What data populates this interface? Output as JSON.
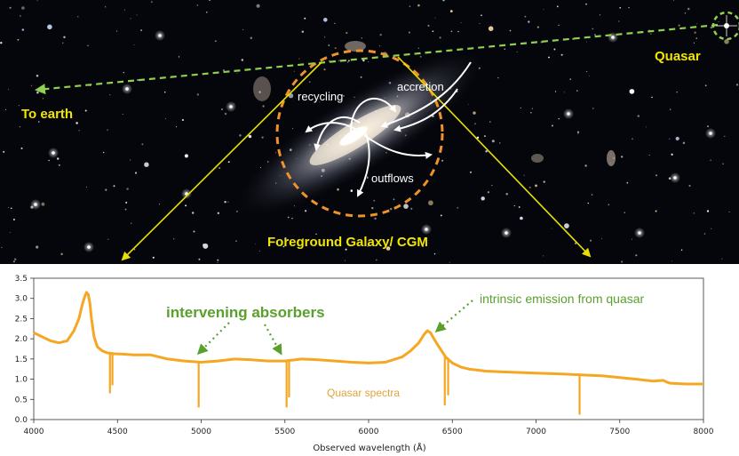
{
  "labels": {
    "to_earth": "To earth",
    "quasar": "Quasar",
    "recycling": "recycling",
    "accretion": "accretion",
    "outflows": "outflows",
    "foreground_galaxy": "Foreground Galaxy/ CGM"
  },
  "spectrum_annotations": {
    "intervening": "intervening absorbers",
    "intrinsic": "intrinsic emission from quasar",
    "series_label": "Quasar spectra"
  },
  "colors": {
    "spectrum": "#f5a623",
    "sightline": "#8fd14f",
    "cgm_circle": "#f0922b",
    "projection_lines": "#e8e000",
    "annotation_green": "#5aa02c"
  },
  "chart_data": {
    "type": "line",
    "xlabel": "Observed wavelength (Å)",
    "ylabel": "",
    "xlim": [
      4000,
      8000
    ],
    "ylim": [
      0,
      3.5
    ],
    "x_ticks": [
      "4000",
      "4500",
      "5000",
      "5500",
      "6000",
      "6500",
      "7000",
      "7500",
      "8000"
    ],
    "y_ticks": [
      "0.0",
      "0.5",
      "1.0",
      "1.5",
      "2.0",
      "2.5",
      "3.0",
      "3.5"
    ],
    "series": [
      {
        "x": [
          4000,
          4050,
          4100,
          4150,
          4200,
          4240,
          4270,
          4290,
          4305,
          4315,
          4325,
          4335,
          4345,
          4360,
          4380,
          4410,
          4440,
          4480,
          4530,
          4600,
          4700,
          4800,
          4900,
          5000,
          5100,
          5200,
          5300,
          5400,
          5500,
          5600,
          5700,
          5800,
          5900,
          6000,
          6100,
          6200,
          6250,
          6300,
          6330,
          6350,
          6370,
          6390,
          6420,
          6460,
          6500,
          6550,
          6600,
          6700,
          6800,
          7000,
          7200,
          7400,
          7600,
          7700,
          7760,
          7780,
          7800,
          7900,
          8000
        ],
        "y": [
          2.15,
          2.05,
          1.95,
          1.9,
          1.95,
          2.2,
          2.5,
          2.85,
          3.05,
          3.15,
          3.1,
          2.9,
          2.5,
          2.05,
          1.8,
          1.7,
          1.65,
          1.63,
          1.62,
          1.6,
          1.6,
          1.5,
          1.45,
          1.42,
          1.45,
          1.5,
          1.48,
          1.45,
          1.45,
          1.5,
          1.48,
          1.45,
          1.42,
          1.4,
          1.42,
          1.55,
          1.7,
          1.9,
          2.1,
          2.2,
          2.15,
          2.0,
          1.8,
          1.55,
          1.4,
          1.3,
          1.25,
          1.2,
          1.18,
          1.15,
          1.12,
          1.08,
          1.0,
          0.95,
          0.97,
          0.93,
          0.9,
          0.88,
          0.88
        ]
      }
    ],
    "absorption_lines": [
      {
        "x": 4455,
        "depth_to": 0.65
      },
      {
        "x": 4470,
        "depth_to": 0.85
      },
      {
        "x": 4985,
        "depth_to": 0.3
      },
      {
        "x": 5510,
        "depth_to": 0.3
      },
      {
        "x": 5525,
        "depth_to": 0.55
      },
      {
        "x": 6455,
        "depth_to": 0.35
      },
      {
        "x": 6475,
        "depth_to": 0.6
      },
      {
        "x": 7260,
        "depth_to": 0.12
      }
    ]
  }
}
